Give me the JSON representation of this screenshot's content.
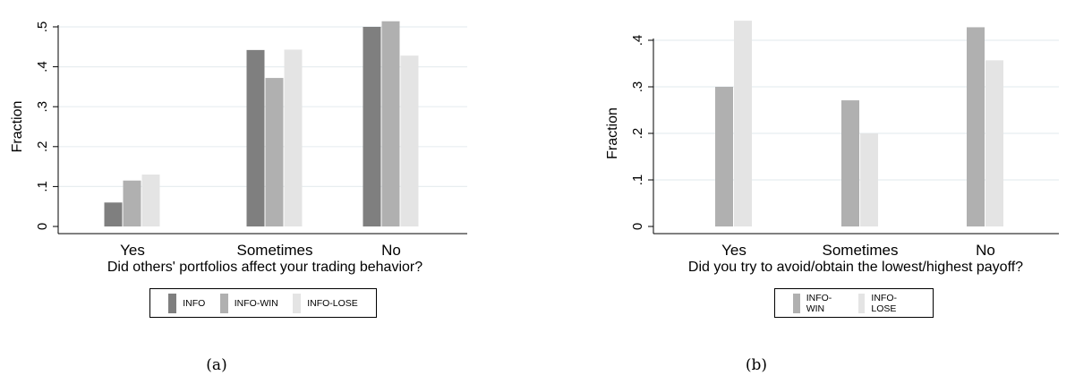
{
  "colors": {
    "INFO": "#7f7f7f",
    "INFO-WIN": "#b0b0b0",
    "INFO-LOSE": "#e4e4e4",
    "grid": "#e8eef0"
  },
  "captions": {
    "a": "(a)",
    "b": "(b)"
  },
  "chart_data": [
    {
      "type": "bar",
      "xlabel": "Did others' portfolios affect your trading behavior?",
      "ylabel": "Fraction",
      "categories": [
        "Yes",
        "Sometimes",
        "No"
      ],
      "ylim": [
        0,
        0.5
      ],
      "yticks": [
        0,
        0.1,
        0.2,
        0.3,
        0.4,
        0.5
      ],
      "ytick_labels": [
        "0",
        ".1",
        ".2",
        ".3",
        ".4",
        ".5"
      ],
      "grid": true,
      "legend_position": "bottom",
      "series": [
        {
          "name": "INFO",
          "values": [
            0.06,
            0.442,
            0.5
          ]
        },
        {
          "name": "INFO-WIN",
          "values": [
            0.115,
            0.372,
            0.514
          ]
        },
        {
          "name": "INFO-LOSE",
          "values": [
            0.13,
            0.443,
            0.428
          ]
        }
      ]
    },
    {
      "type": "bar",
      "xlabel": "Did you try to avoid/obtain the lowest/highest payoff?",
      "ylabel": "Fraction",
      "categories": [
        "Yes",
        "Sometimes",
        "No"
      ],
      "ylim": [
        0,
        0.4
      ],
      "yticks": [
        0,
        0.1,
        0.2,
        0.3,
        0.4
      ],
      "ytick_labels": [
        "0",
        ".1",
        ".2",
        ".3",
        ".4"
      ],
      "grid": true,
      "legend_position": "bottom",
      "series": [
        {
          "name": "INFO-WIN",
          "values": [
            0.3,
            0.271,
            0.428
          ]
        },
        {
          "name": "INFO-LOSE",
          "values": [
            0.442,
            0.2,
            0.357
          ]
        }
      ]
    }
  ]
}
